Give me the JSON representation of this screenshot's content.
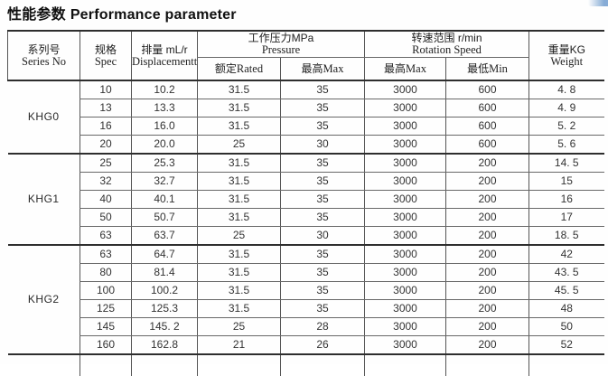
{
  "page_title": {
    "zh": "性能参数",
    "en": "Performance parameter"
  },
  "artifact": {
    "corner_scan_mark_color": "#5f91c8"
  },
  "table": {
    "header": {
      "series": {
        "zh": "系列号",
        "en": "Series  No"
      },
      "spec": {
        "zh": "规格",
        "en": "Spec"
      },
      "displacement": {
        "zh": "排量 mL/r",
        "en": "Displacementt"
      },
      "pressure": {
        "zh": "工作压力MPa",
        "en": "Pressure",
        "sub": [
          {
            "zh": "额定",
            "en": "Rated"
          },
          {
            "zh": "最高",
            "en": "Max"
          }
        ]
      },
      "rotation": {
        "zh": "转速范围 r/min",
        "en": "Rotation Speed",
        "sub": [
          {
            "zh": "最高",
            "en": "Max"
          },
          {
            "zh": "最低",
            "en": "Min"
          }
        ]
      },
      "weight": {
        "zh": "重量KG",
        "en": "Weight"
      }
    },
    "columns": [
      "series",
      "spec",
      "displacement",
      "pressure_rated",
      "pressure_max",
      "rotation_max",
      "rotation_min",
      "weight"
    ],
    "groups": [
      {
        "series": "KHG0",
        "rows": [
          [
            "10",
            "10.2",
            "31.5",
            "35",
            "3000",
            "600",
            "4. 8"
          ],
          [
            "13",
            "13.3",
            "31.5",
            "35",
            "3000",
            "600",
            "4. 9"
          ],
          [
            "16",
            "16.0",
            "31.5",
            "35",
            "3000",
            "600",
            "5. 2"
          ],
          [
            "20",
            "20.0",
            "25",
            "30",
            "3000",
            "600",
            "5. 6"
          ]
        ]
      },
      {
        "series": "KHG1",
        "rows": [
          [
            "25",
            "25.3",
            "31.5",
            "35",
            "3000",
            "200",
            "14. 5"
          ],
          [
            "32",
            "32.7",
            "31.5",
            "35",
            "3000",
            "200",
            "15"
          ],
          [
            "40",
            "40.1",
            "31.5",
            "35",
            "3000",
            "200",
            "16"
          ],
          [
            "50",
            "50.7",
            "31.5",
            "35",
            "3000",
            "200",
            "17"
          ],
          [
            "63",
            "63.7",
            "25",
            "30",
            "3000",
            "200",
            "18. 5"
          ]
        ]
      },
      {
        "series": "KHG2",
        "rows": [
          [
            "63",
            "64.7",
            "31.5",
            "35",
            "3000",
            "200",
            "42"
          ],
          [
            "80",
            "81.4",
            "31.5",
            "35",
            "3000",
            "200",
            "43. 5"
          ],
          [
            "100",
            "100.2",
            "31.5",
            "35",
            "3000",
            "200",
            "45. 5"
          ],
          [
            "125",
            "125.3",
            "31.5",
            "35",
            "3000",
            "200",
            "48"
          ],
          [
            "145",
            "145. 2",
            "25",
            "28",
            "3000",
            "200",
            "50"
          ],
          [
            "160",
            "162.8",
            "21",
            "26",
            "3000",
            "200",
            "52"
          ]
        ]
      }
    ]
  }
}
